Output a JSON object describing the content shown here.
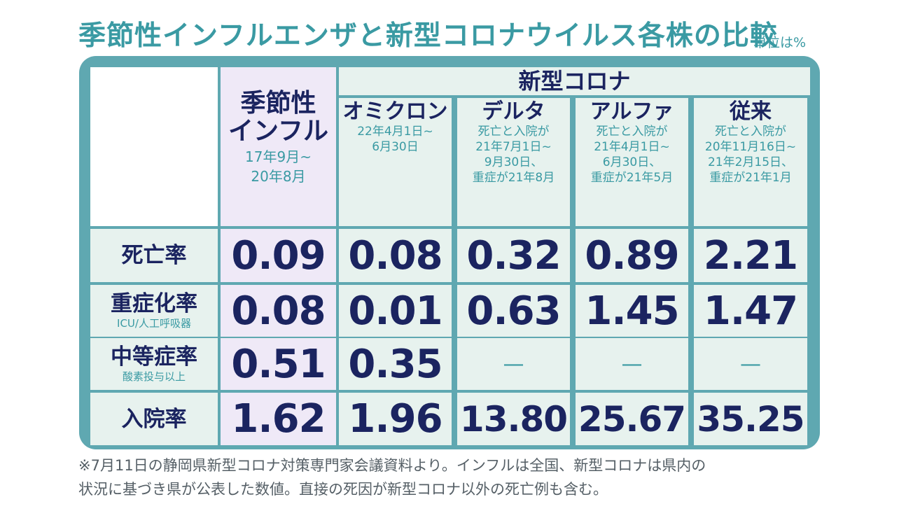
{
  "title": "季節性インフルエンザと新型コロナウイルス各株の比較",
  "unit": "単位は%",
  "chart_data": {
    "type": "table",
    "group_header": "新型コロナ",
    "columns": [
      {
        "name_lines": [
          "季節性",
          "インフル"
        ],
        "note_lines": [
          "17年9月~",
          "20年8月"
        ]
      },
      {
        "name_lines": [
          "オミクロン"
        ],
        "note_lines": [
          "22年4月1日~",
          "6月30日"
        ]
      },
      {
        "name_lines": [
          "デルタ"
        ],
        "note_lines": [
          "死亡と入院が",
          "21年7月1日~",
          "9月30日、",
          "重症が21年8月"
        ]
      },
      {
        "name_lines": [
          "アルファ"
        ],
        "note_lines": [
          "死亡と入院が",
          "21年4月1日~",
          "6月30日、",
          "重症が21年5月"
        ]
      },
      {
        "name_lines": [
          "従来"
        ],
        "note_lines": [
          "死亡と入院が",
          "20年11月16日~",
          "21年2月15日、",
          "重症が21年1月"
        ]
      }
    ],
    "rows": [
      {
        "label": "死亡率",
        "sublabel": "",
        "values": [
          "0.09",
          "0.08",
          "0.32",
          "0.89",
          "2.21"
        ]
      },
      {
        "label": "重症化率",
        "sublabel": "ICU/人工呼吸器",
        "values": [
          "0.08",
          "0.01",
          "0.63",
          "1.45",
          "1.47"
        ]
      },
      {
        "label": "中等症率",
        "sublabel": "酸素投与以上",
        "values": [
          "0.51",
          "0.35",
          "—",
          "—",
          "—"
        ]
      },
      {
        "label": "入院率",
        "sublabel": "",
        "values": [
          "1.62",
          "1.96",
          "13.80",
          "25.67",
          "35.25"
        ]
      }
    ]
  },
  "footnote": [
    "※7月11日の静岡県新型コロナ対策専門家会議資料より。インフルは全国、新型コロナは県内の",
    "状況に基づき県が公表した数値。直接の死因が新型コロナ以外の死亡例も含む。"
  ],
  "colors": {
    "accent": "#3a9aa3",
    "frame": "#5fa8b1",
    "value_text": "#1b2460",
    "flu_bg": "#efe9f7",
    "covid_bg": "#e7f2ee"
  }
}
